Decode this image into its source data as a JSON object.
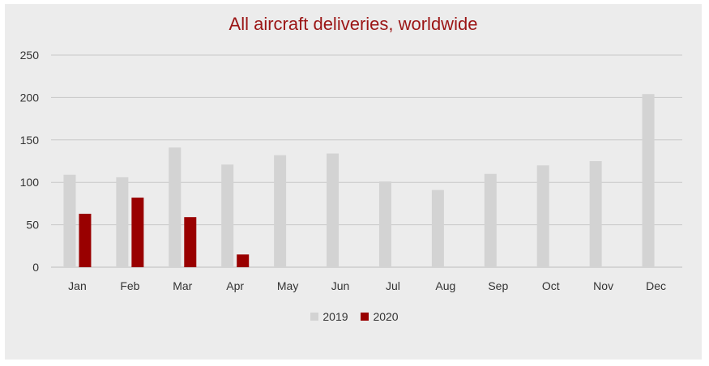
{
  "chart_data": {
    "type": "bar",
    "title": "All aircraft deliveries, worldwide",
    "categories": [
      "Jan",
      "Feb",
      "Mar",
      "Apr",
      "May",
      "Jun",
      "Jul",
      "Aug",
      "Sep",
      "Oct",
      "Nov",
      "Dec"
    ],
    "series": [
      {
        "name": "2019",
        "color": "#d3d3d3",
        "values": [
          109,
          106,
          141,
          121,
          132,
          134,
          101,
          91,
          110,
          120,
          125,
          204
        ]
      },
      {
        "name": "2020",
        "color": "#990000",
        "values": [
          63,
          82,
          59,
          15,
          null,
          null,
          null,
          null,
          null,
          null,
          null,
          null
        ]
      }
    ],
    "y_ticks": [
      0,
      50,
      100,
      150,
      200,
      250
    ],
    "ylim": [
      0,
      250
    ],
    "grid": true,
    "legend_position": "bottom"
  }
}
